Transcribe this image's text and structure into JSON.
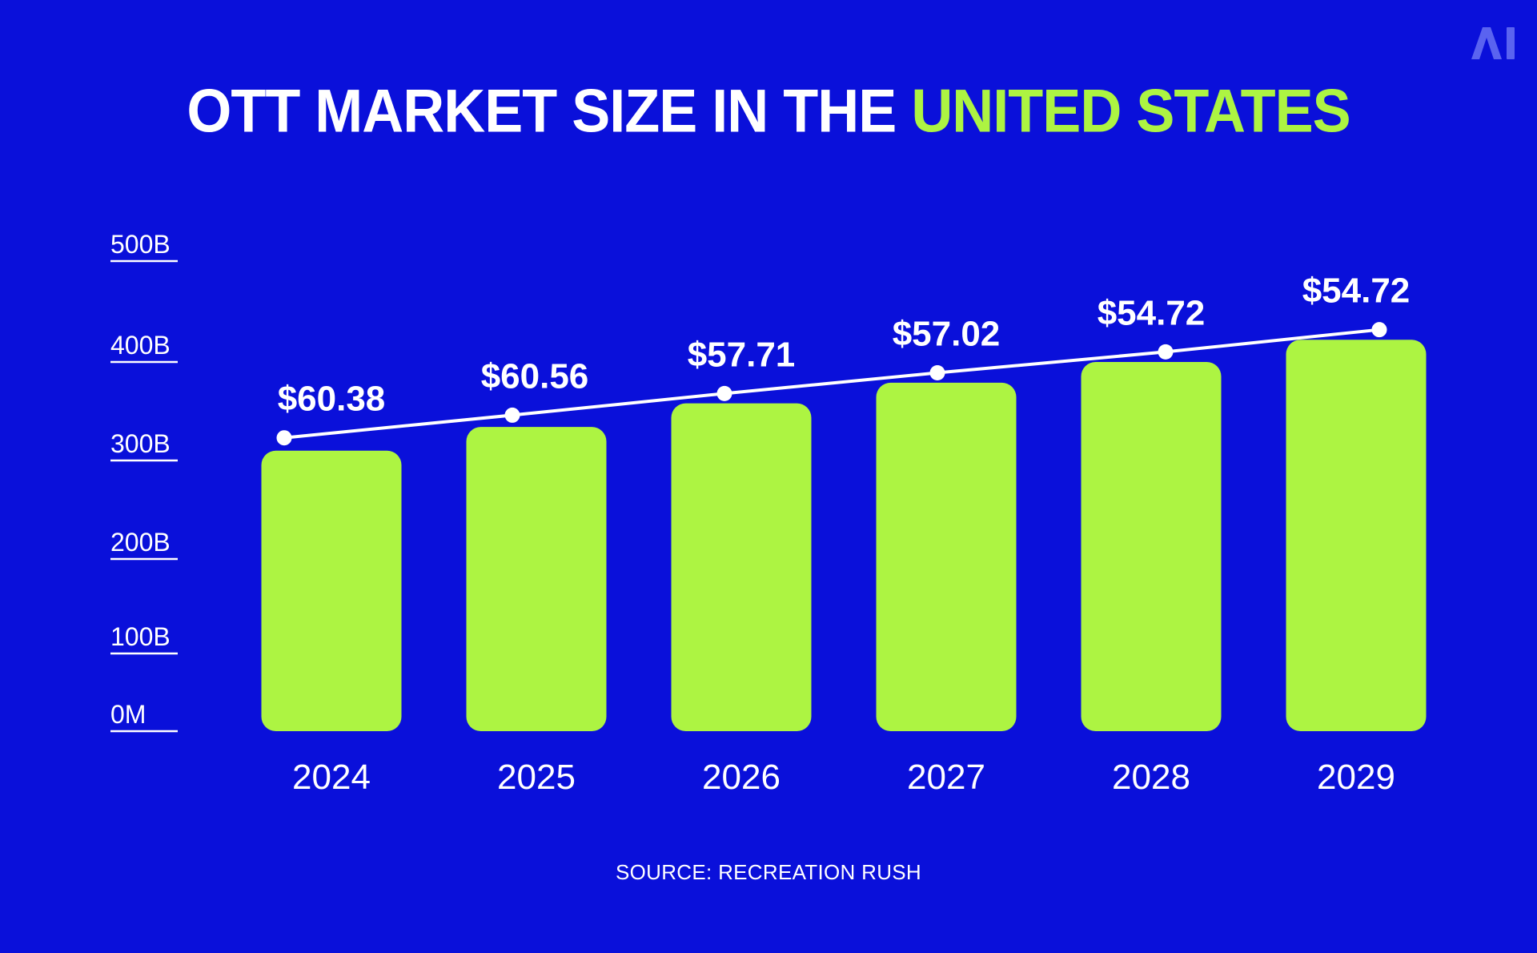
{
  "colors": {
    "background": "#0a10da",
    "bar": "#adf442",
    "text": "#ffffff",
    "accent": "#adf442",
    "logo": "#5a63f0"
  },
  "title": {
    "part1": "OTT MARKET SIZE IN THE ",
    "part2": "UNITED STATES"
  },
  "logo": {
    "text": "AI",
    "icon": "ai-logo-icon"
  },
  "source": "SOURCE: RECREATION RUSH",
  "chart_data": {
    "type": "bar",
    "title": "OTT MARKET SIZE IN THE UNITED STATES",
    "categories": [
      "2024",
      "2025",
      "2026",
      "2027",
      "2028",
      "2029"
    ],
    "series": [
      {
        "values": [
          310,
          334,
          358,
          379,
          400,
          422
        ]
      }
    ],
    "line_overlay": {
      "values": [
        323,
        346,
        368,
        389,
        410,
        432
      ]
    },
    "data_labels": [
      "$60.38",
      "$60.56",
      "$57.71",
      "$57.02",
      "$54.72",
      "$54.72"
    ],
    "y_ticks": [
      {
        "value": 0,
        "label": "0M"
      },
      {
        "value": 100,
        "label": "100B"
      },
      {
        "value": 200,
        "label": "200B"
      },
      {
        "value": 300,
        "label": "300B"
      },
      {
        "value": 400,
        "label": "400B"
      },
      {
        "value": 500,
        "label": "500B"
      }
    ],
    "ylim": [
      0,
      500
    ],
    "xlabel": "",
    "ylabel": "",
    "grid": false,
    "legend": "none"
  }
}
